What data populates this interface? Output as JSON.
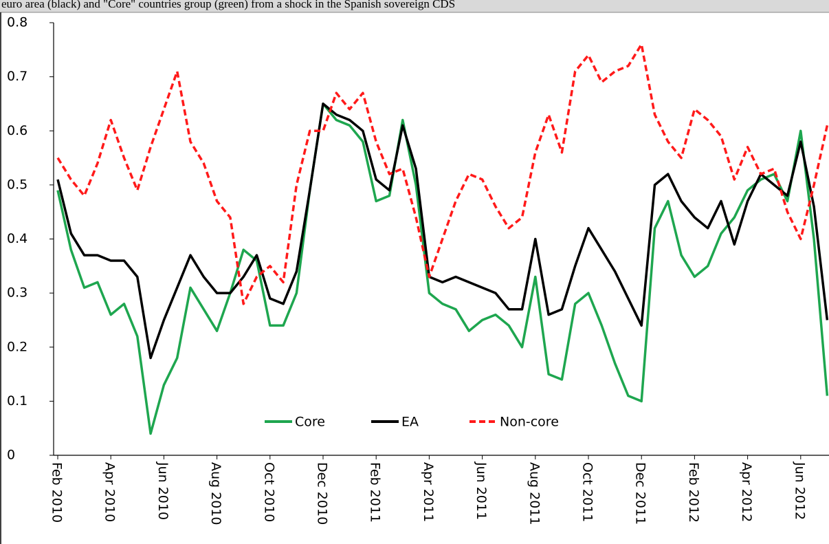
{
  "chart_data": {
    "type": "line",
    "title": "euro area (black) and \"Core\" countries group (green) from a shock in the Spanish sovereign CDS",
    "categories": [
      "Feb 2010",
      null,
      null,
      null,
      "Apr 2010",
      null,
      null,
      null,
      "Jun 2010",
      null,
      null,
      null,
      "Aug 2010",
      null,
      null,
      null,
      "Oct 2010",
      null,
      null,
      null,
      "Dec 2010",
      null,
      null,
      null,
      "Feb 2011",
      null,
      null,
      null,
      "Apr 2011",
      null,
      null,
      null,
      "Jun 2011",
      null,
      null,
      null,
      "Aug 2011",
      null,
      null,
      null,
      "Oct 2011",
      null,
      null,
      null,
      "Dec 2011",
      null,
      null,
      null,
      "Feb 2012",
      null,
      null,
      null,
      "Apr 2012",
      null,
      null,
      null,
      "Jun 2012",
      null,
      null
    ],
    "series": [
      {
        "name": "Core",
        "color": "#1ea64f",
        "dashed": false,
        "values": [
          0.49,
          0.38,
          0.31,
          0.32,
          0.26,
          0.28,
          0.22,
          0.04,
          0.13,
          0.18,
          0.31,
          0.27,
          0.23,
          0.3,
          0.38,
          0.36,
          0.24,
          0.24,
          0.3,
          0.49,
          0.65,
          0.62,
          0.61,
          0.58,
          0.47,
          0.48,
          0.62,
          0.5,
          0.3,
          0.28,
          0.27,
          0.23,
          0.25,
          0.26,
          0.24,
          0.2,
          0.33,
          0.15,
          0.14,
          0.28,
          0.3,
          0.24,
          0.17,
          0.11,
          0.1,
          0.42,
          0.47,
          0.37,
          0.33,
          0.35,
          0.41,
          0.44,
          0.49,
          0.51,
          0.52,
          0.47,
          0.6,
          0.4,
          0.11
        ]
      },
      {
        "name": "EA",
        "color": "#000000",
        "dashed": false,
        "values": [
          0.51,
          0.41,
          0.37,
          0.37,
          0.36,
          0.36,
          0.33,
          0.18,
          0.25,
          0.31,
          0.37,
          0.33,
          0.3,
          0.3,
          0.33,
          0.37,
          0.29,
          0.28,
          0.34,
          0.49,
          0.65,
          0.63,
          0.62,
          0.6,
          0.51,
          0.49,
          0.61,
          0.53,
          0.33,
          0.32,
          0.33,
          0.32,
          0.31,
          0.3,
          0.27,
          0.27,
          0.4,
          0.26,
          0.27,
          0.35,
          0.42,
          0.38,
          0.34,
          0.29,
          0.24,
          0.5,
          0.52,
          0.47,
          0.44,
          0.42,
          0.47,
          0.39,
          0.47,
          0.52,
          0.5,
          0.48,
          0.58,
          0.46,
          0.25
        ]
      },
      {
        "name": "Non-core",
        "color": "#ff1a1a",
        "dashed": true,
        "values": [
          0.55,
          0.51,
          0.48,
          0.54,
          0.62,
          0.55,
          0.49,
          0.57,
          0.64,
          0.71,
          0.58,
          0.54,
          0.47,
          0.44,
          0.28,
          0.33,
          0.35,
          0.32,
          0.5,
          0.6,
          0.6,
          0.67,
          0.64,
          0.67,
          0.58,
          0.52,
          0.53,
          0.44,
          0.33,
          0.4,
          0.47,
          0.52,
          0.51,
          0.46,
          0.42,
          0.44,
          0.56,
          0.63,
          0.56,
          0.71,
          0.74,
          0.69,
          0.71,
          0.72,
          0.76,
          0.63,
          0.58,
          0.55,
          0.64,
          0.62,
          0.59,
          0.51,
          0.57,
          0.52,
          0.53,
          0.45,
          0.4,
          0.5,
          0.61
        ]
      }
    ],
    "ylim": [
      0,
      0.8
    ],
    "yticks": [
      0,
      0.1,
      0.2,
      0.3,
      0.4,
      0.5,
      0.6,
      0.7,
      0.8
    ],
    "grid": false
  }
}
